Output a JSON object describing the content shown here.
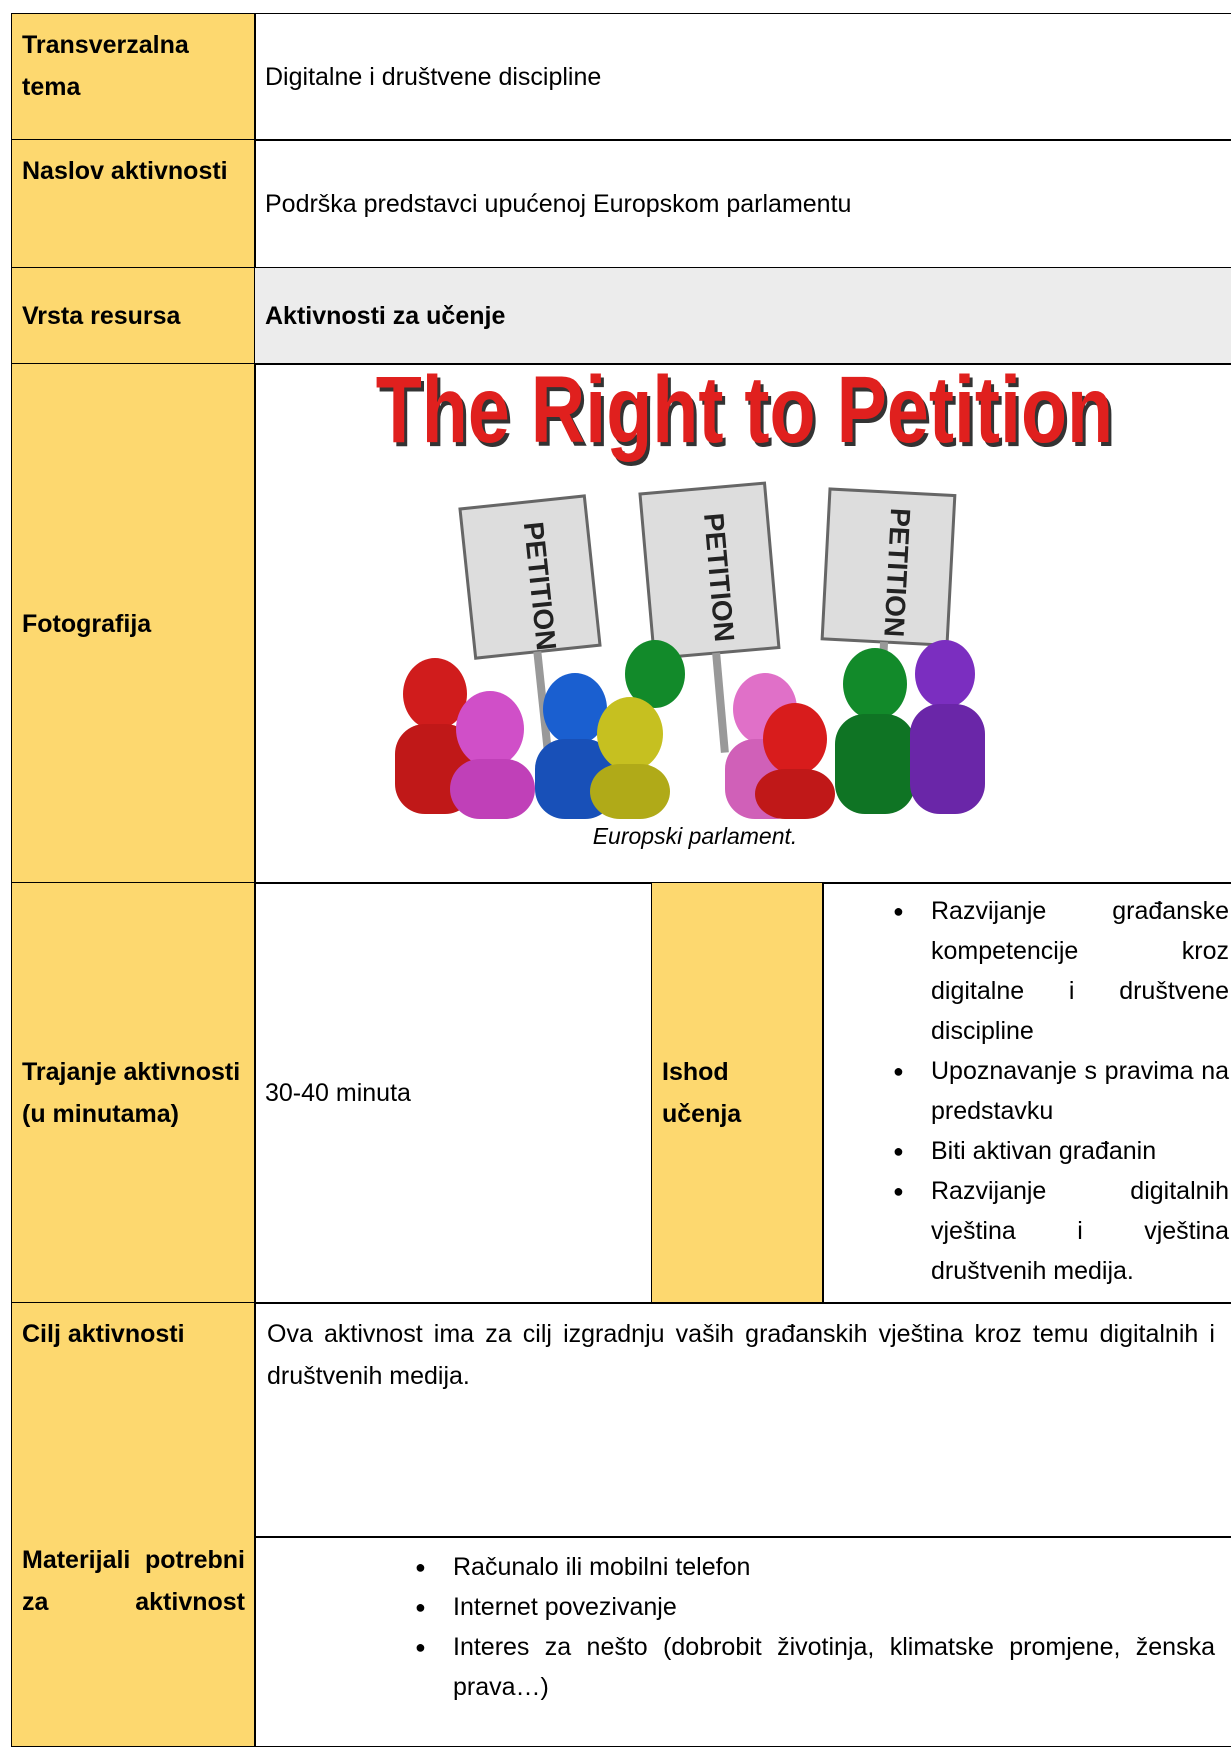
{
  "rows": [
    {
      "label": "Transverzalna tema",
      "content": "Digitalne i društvene discipline"
    },
    {
      "label": "Naslov aktivnosti",
      "content": "Podrška predstavci upućenoj Europskom parlamentu"
    },
    {
      "label": "Vrsta resursa",
      "content": "Aktivnosti za učenje"
    }
  ],
  "photo": {
    "label": "Fotografija",
    "title": "The Right to Petition",
    "sign": "PETITION",
    "caption": "Europski parlament."
  },
  "duration": {
    "label": "Trajanje aktivnosti",
    "label_unit": "(u minutama)",
    "value": "30-40 minuta",
    "outcome_label": "Ishod učenja",
    "outcomes": [
      "Razvijanje građanske kompetencije kroz digitalne i društvene discipline",
      "Upoznavanje s pravima na predstavku",
      "Biti aktivan građanin",
      "Razvijanje digitalnih vještina i vještina društvenih medija."
    ]
  },
  "goal": {
    "label": "Cilj aktivnosti",
    "content": "Ova aktivnost ima za cilj izgradnju vaših građanskih vještina kroz temu digitalnih i društvenih medija."
  },
  "materials": {
    "label": "Materijali potrebni za aktivnost",
    "items": [
      "Računalo ili mobilni telefon",
      "Internet povezivanje",
      "Interes za  nešto (dobrobit životinja, klimatske promjene, ženska prava…)"
    ]
  }
}
